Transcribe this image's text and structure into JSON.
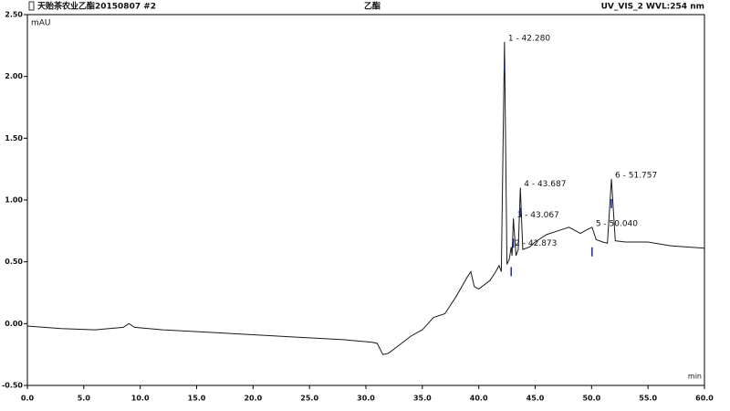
{
  "chart_data": {
    "type": "line",
    "header_left": "天贻茶农业乙酯20150807 #2",
    "title": "乙酯",
    "header_right": "UV_VIS_2 WVL:254 nm",
    "ylabel": "mAU",
    "xlabel": "min",
    "x": [
      0,
      3,
      6,
      8.5,
      9,
      9.5,
      12,
      16,
      20,
      24,
      28,
      30.5,
      31,
      31.5,
      32,
      33,
      34,
      35,
      35.5,
      36,
      37,
      37.5,
      38,
      38.5,
      39,
      39.3,
      39.6,
      40,
      41,
      41.5,
      41.8,
      42.0,
      42.28,
      42.5,
      42.7,
      42.873,
      42.95,
      43.067,
      43.3,
      43.5,
      43.687,
      43.9,
      44.5,
      45,
      46,
      47,
      48,
      49,
      49.6,
      50.04,
      50.4,
      51,
      51.4,
      51.757,
      52.1,
      53,
      55,
      57,
      60
    ],
    "series": [
      {
        "name": "UV_VIS_2",
        "color": "#1a1a1a",
        "values": [
          -0.02,
          -0.04,
          -0.05,
          -0.03,
          0.0,
          -0.03,
          -0.05,
          -0.07,
          -0.09,
          -0.11,
          -0.13,
          -0.15,
          -0.16,
          -0.25,
          -0.24,
          -0.17,
          -0.1,
          -0.05,
          0.0,
          0.05,
          0.08,
          0.15,
          0.22,
          0.3,
          0.38,
          0.42,
          0.3,
          0.28,
          0.35,
          0.42,
          0.47,
          0.42,
          2.28,
          0.48,
          0.52,
          0.62,
          0.55,
          0.85,
          0.55,
          0.6,
          1.1,
          0.6,
          0.62,
          0.66,
          0.72,
          0.75,
          0.78,
          0.73,
          0.76,
          0.78,
          0.68,
          0.66,
          0.65,
          1.17,
          0.67,
          0.66,
          0.66,
          0.63,
          0.61
        ]
      }
    ],
    "peaks": [
      {
        "label": "1 - 42.280",
        "x": 42.28,
        "y": 2.28
      },
      {
        "label": "2 - 42.873",
        "x": 42.873,
        "y": 0.62
      },
      {
        "label": "3 - 43.067",
        "x": 43.067,
        "y": 0.85
      },
      {
        "label": "4 - 43.687",
        "x": 43.687,
        "y": 1.1
      },
      {
        "label": "5 - 50.040",
        "x": 50.04,
        "y": 0.78
      },
      {
        "label": "6 - 51.757",
        "x": 51.757,
        "y": 1.17
      }
    ],
    "xlim": [
      0,
      60
    ],
    "xticks": [
      {
        "value": 0,
        "label": "0.0"
      },
      {
        "value": 5,
        "label": "5.0"
      },
      {
        "value": 10,
        "label": "10.0"
      },
      {
        "value": 15,
        "label": "15.0"
      },
      {
        "value": 20,
        "label": "20.0"
      },
      {
        "value": 25,
        "label": "25.0"
      },
      {
        "value": 30,
        "label": "30.0"
      },
      {
        "value": 35,
        "label": "35.0"
      },
      {
        "value": 40,
        "label": "40.0"
      },
      {
        "value": 45,
        "label": "45.0"
      },
      {
        "value": 50,
        "label": "50.0"
      },
      {
        "value": 55,
        "label": "55.0"
      },
      {
        "value": 60,
        "label": "60.0"
      }
    ],
    "ylim": [
      -0.5,
      2.5
    ],
    "yticks": [
      {
        "value": -0.5,
        "label": "-0.50"
      },
      {
        "value": 0,
        "label": "0.00"
      },
      {
        "value": 0.5,
        "label": "0.50"
      },
      {
        "value": 1,
        "label": "1.00"
      },
      {
        "value": 1.5,
        "label": "1.50"
      },
      {
        "value": 2,
        "label": "2.00"
      },
      {
        "value": 2.5,
        "label": "2.50"
      }
    ],
    "grid": false
  }
}
